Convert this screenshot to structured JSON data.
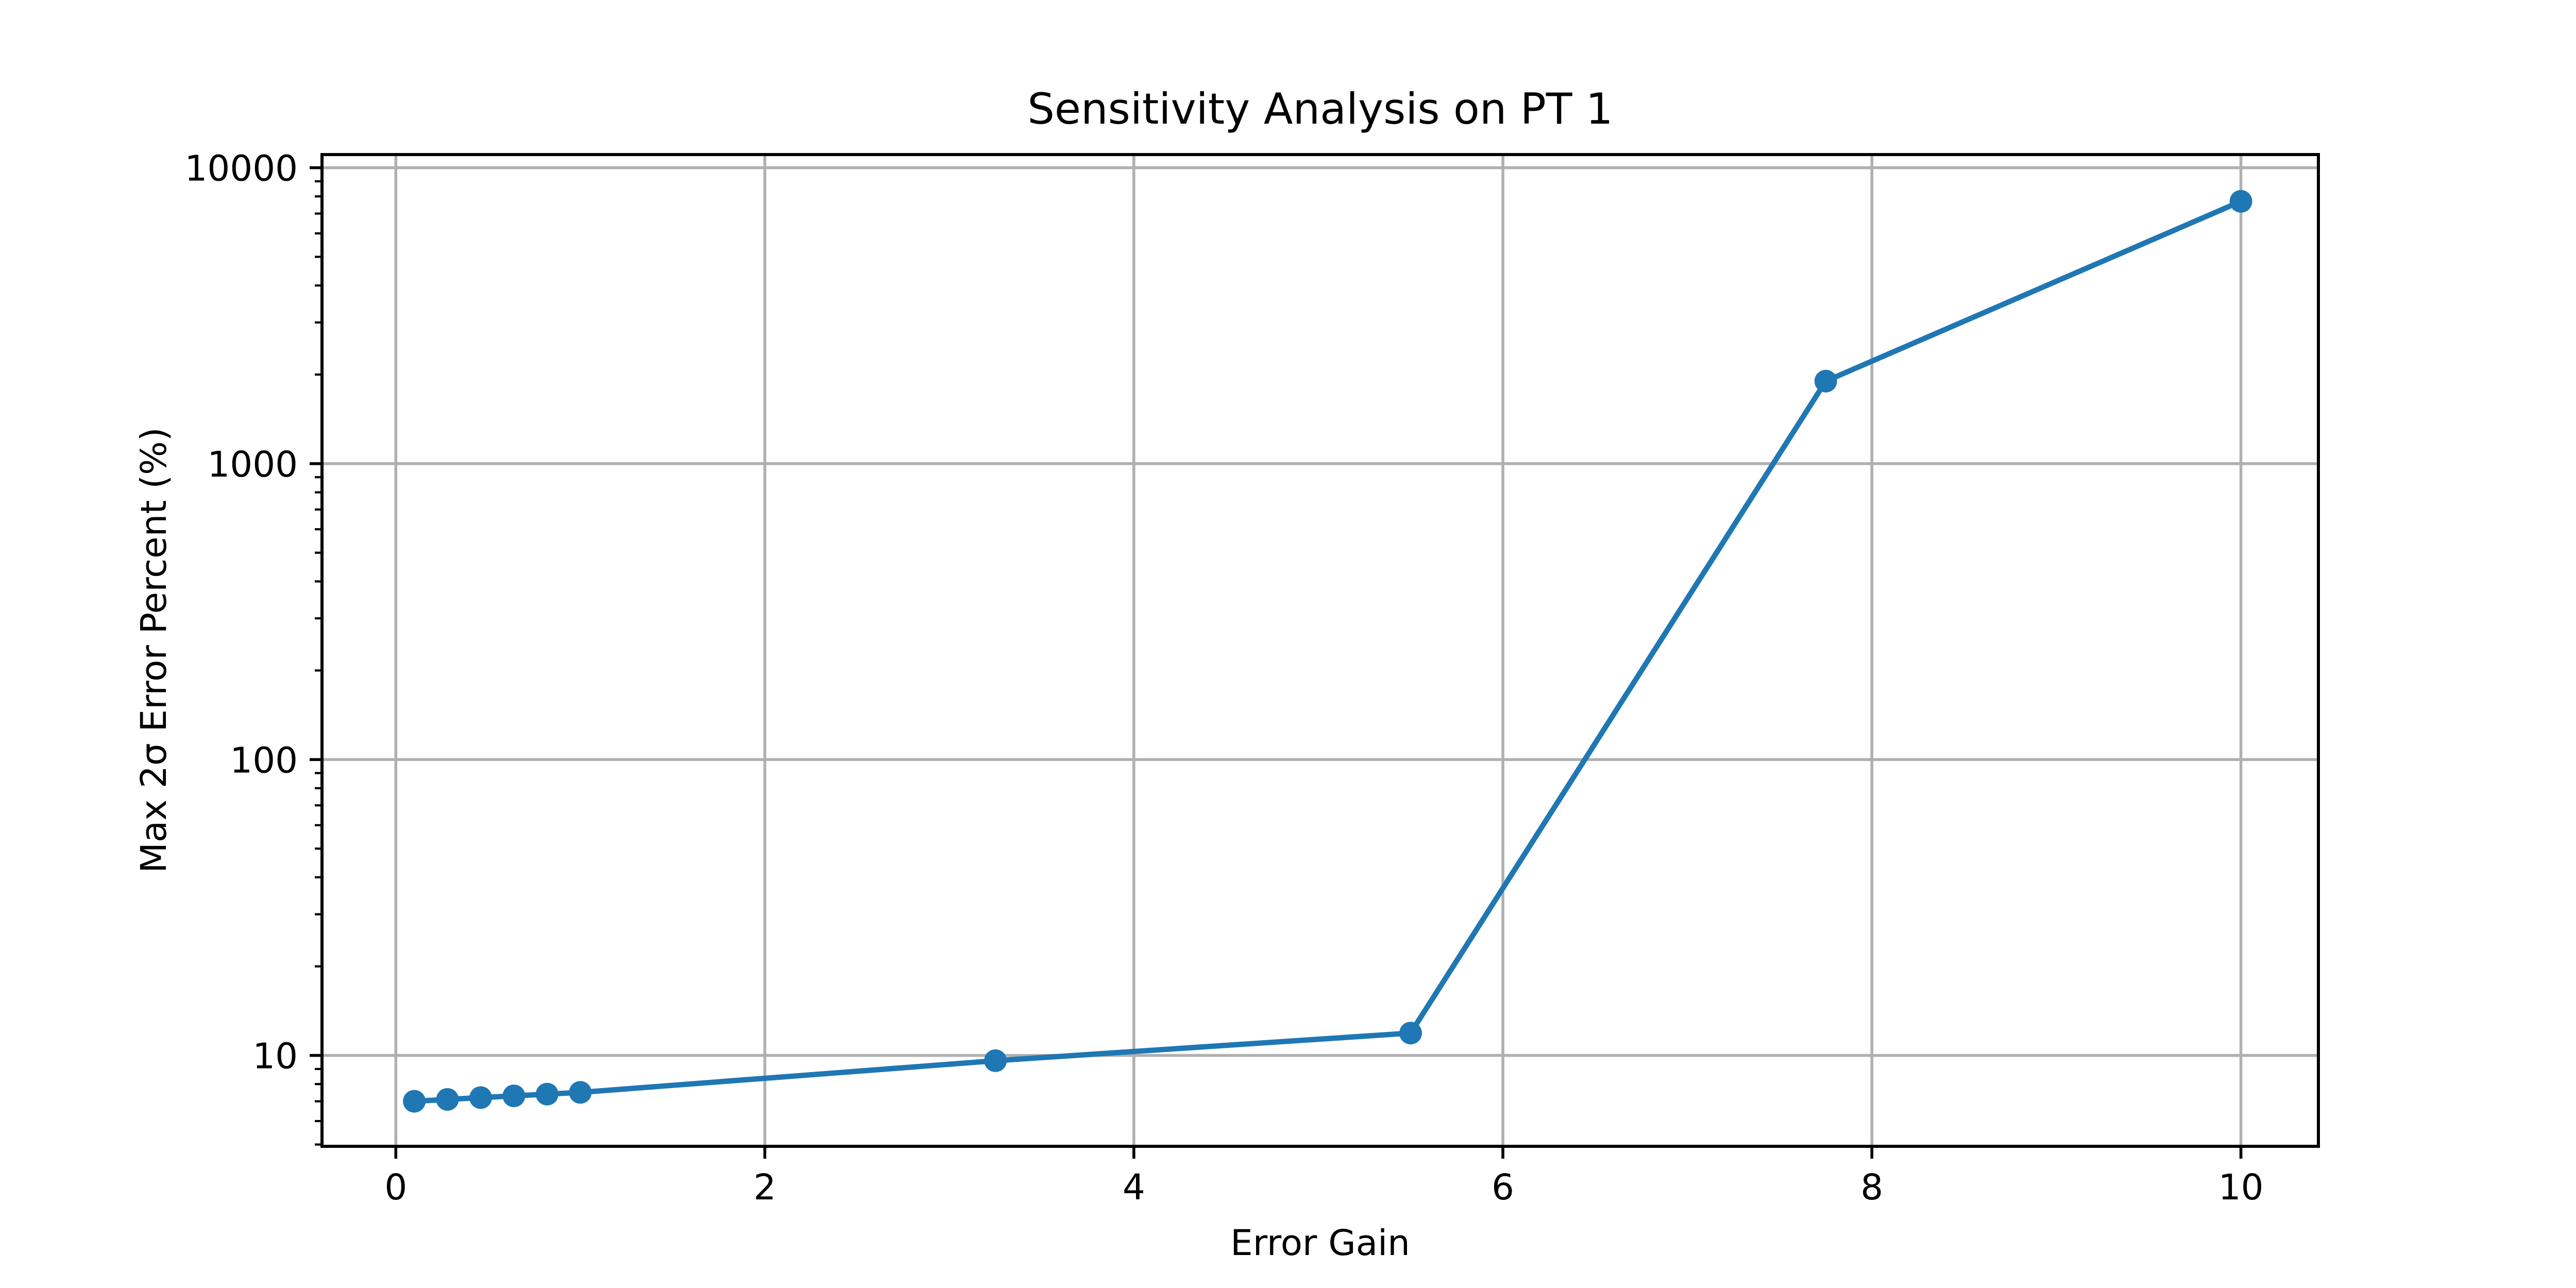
{
  "chart_data": {
    "type": "line",
    "title": "Sensitivity Analysis on PT 1",
    "xlabel": "Error Gain",
    "ylabel": "Max 2σ Error Percent (%)",
    "x": [
      0.1,
      0.28,
      0.46,
      0.64,
      0.82,
      1.0,
      3.25,
      5.5,
      7.75,
      10.0
    ],
    "y": [
      7.0,
      7.1,
      7.2,
      7.3,
      7.4,
      7.5,
      9.6,
      11.9,
      1900,
      7700
    ],
    "x_ticks": [
      0,
      2,
      4,
      6,
      8,
      10
    ],
    "x_tick_labels": [
      "0",
      "2",
      "4",
      "6",
      "8",
      "10"
    ],
    "y_ticks": [
      10,
      100,
      1000,
      10000
    ],
    "y_tick_labels": [
      "10",
      "100",
      "1000",
      "10000"
    ],
    "y_scale": "log",
    "xlim": [
      -0.4,
      10.42
    ],
    "ylim": [
      4.93,
      11080
    ],
    "grid": true,
    "legend": null,
    "colors": {
      "line": "#1f77b4",
      "marker": "#1f77b4",
      "grid": "#b0b0b0",
      "spine": "#000000",
      "background": "#ffffff",
      "text": "#000000"
    }
  }
}
